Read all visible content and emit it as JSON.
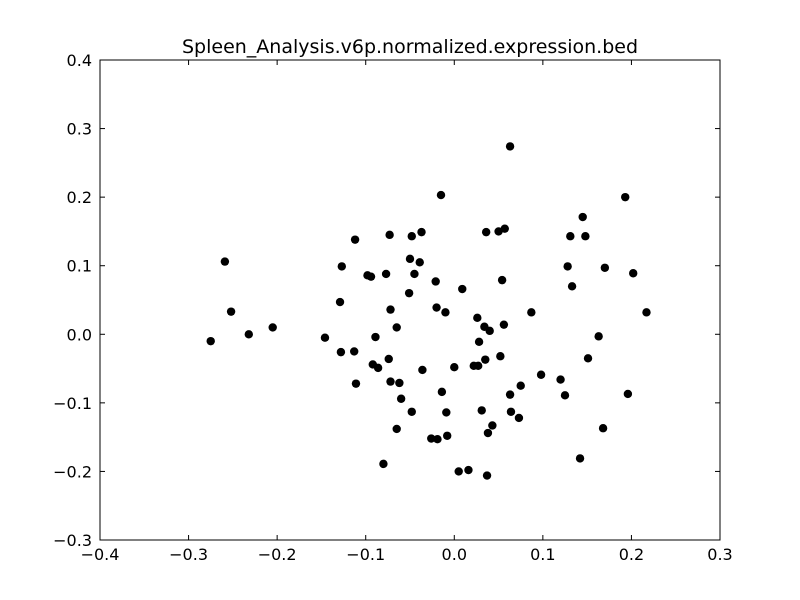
{
  "chart_data": {
    "type": "scatter",
    "title": "Spleen_Analysis.v6p.normalized.expression.bed",
    "xlabel": "",
    "ylabel": "",
    "xlim": [
      -0.4,
      0.3
    ],
    "ylim": [
      -0.3,
      0.4
    ],
    "x_ticks": [
      -0.4,
      -0.3,
      -0.2,
      -0.1,
      0.0,
      0.1,
      0.2,
      0.3
    ],
    "y_ticks": [
      -0.3,
      -0.2,
      -0.1,
      0.0,
      0.1,
      0.2,
      0.3,
      0.4
    ],
    "x_tick_labels": [
      "−0.4",
      "−0.3",
      "−0.2",
      "−0.1",
      "0.0",
      "0.1",
      "0.2",
      "0.3"
    ],
    "y_tick_labels": [
      "−0.3",
      "−0.2",
      "−0.1",
      "0.0",
      "0.1",
      "0.2",
      "0.3",
      "0.4"
    ],
    "grid": false,
    "marker_color": "#000000",
    "series": [
      {
        "points": [
          [
            -0.275,
            -0.01
          ],
          [
            -0.259,
            0.106
          ],
          [
            -0.252,
            0.033
          ],
          [
            -0.232,
            0.0
          ],
          [
            -0.205,
            0.01
          ],
          [
            -0.146,
            -0.005
          ],
          [
            -0.128,
            -0.026
          ],
          [
            -0.129,
            0.047
          ],
          [
            -0.127,
            0.099
          ],
          [
            -0.112,
            0.138
          ],
          [
            -0.113,
            -0.025
          ],
          [
            -0.111,
            -0.072
          ],
          [
            -0.098,
            0.086
          ],
          [
            -0.094,
            0.084
          ],
          [
            -0.092,
            -0.044
          ],
          [
            -0.089,
            -0.004
          ],
          [
            -0.086,
            -0.049
          ],
          [
            -0.08,
            -0.189
          ],
          [
            -0.077,
            0.088
          ],
          [
            -0.073,
            0.145
          ],
          [
            -0.074,
            -0.036
          ],
          [
            -0.072,
            0.036
          ],
          [
            -0.072,
            -0.069
          ],
          [
            -0.065,
            0.01
          ],
          [
            -0.065,
            -0.138
          ],
          [
            -0.062,
            -0.071
          ],
          [
            -0.06,
            -0.094
          ],
          [
            -0.051,
            0.06
          ],
          [
            -0.05,
            0.11
          ],
          [
            -0.048,
            0.143
          ],
          [
            -0.048,
            -0.113
          ],
          [
            -0.045,
            0.088
          ],
          [
            -0.039,
            0.105
          ],
          [
            -0.037,
            0.149
          ],
          [
            -0.036,
            -0.052
          ],
          [
            -0.026,
            -0.152
          ],
          [
            -0.021,
            0.077
          ],
          [
            -0.02,
            0.039
          ],
          [
            -0.019,
            -0.153
          ],
          [
            -0.015,
            0.203
          ],
          [
            -0.014,
            -0.084
          ],
          [
            -0.01,
            0.032
          ],
          [
            -0.009,
            -0.114
          ],
          [
            -0.008,
            -0.148
          ],
          [
            0.0,
            -0.048
          ],
          [
            0.005,
            -0.2
          ],
          [
            0.009,
            0.066
          ],
          [
            0.016,
            -0.198
          ],
          [
            0.022,
            -0.046
          ],
          [
            0.026,
            0.024
          ],
          [
            0.027,
            -0.046
          ],
          [
            0.028,
            -0.011
          ],
          [
            0.031,
            -0.111
          ],
          [
            0.034,
            0.011
          ],
          [
            0.035,
            -0.037
          ],
          [
            0.036,
            0.149
          ],
          [
            0.037,
            -0.206
          ],
          [
            0.038,
            -0.144
          ],
          [
            0.04,
            0.005
          ],
          [
            0.043,
            -0.133
          ],
          [
            0.05,
            0.15
          ],
          [
            0.052,
            -0.032
          ],
          [
            0.054,
            0.079
          ],
          [
            0.056,
            0.014
          ],
          [
            0.057,
            0.154
          ],
          [
            0.063,
            0.274
          ],
          [
            0.063,
            -0.088
          ],
          [
            0.064,
            -0.113
          ],
          [
            0.073,
            -0.122
          ],
          [
            0.075,
            -0.075
          ],
          [
            0.087,
            0.032
          ],
          [
            0.098,
            -0.059
          ],
          [
            0.12,
            -0.066
          ],
          [
            0.125,
            -0.089
          ],
          [
            0.128,
            0.099
          ],
          [
            0.131,
            0.143
          ],
          [
            0.133,
            0.07
          ],
          [
            0.142,
            -0.181
          ],
          [
            0.145,
            0.171
          ],
          [
            0.148,
            0.143
          ],
          [
            0.151,
            -0.035
          ],
          [
            0.163,
            -0.003
          ],
          [
            0.168,
            -0.137
          ],
          [
            0.17,
            0.097
          ],
          [
            0.193,
            0.2
          ],
          [
            0.196,
            -0.087
          ],
          [
            0.202,
            0.089
          ],
          [
            0.217,
            0.032
          ]
        ]
      }
    ]
  }
}
